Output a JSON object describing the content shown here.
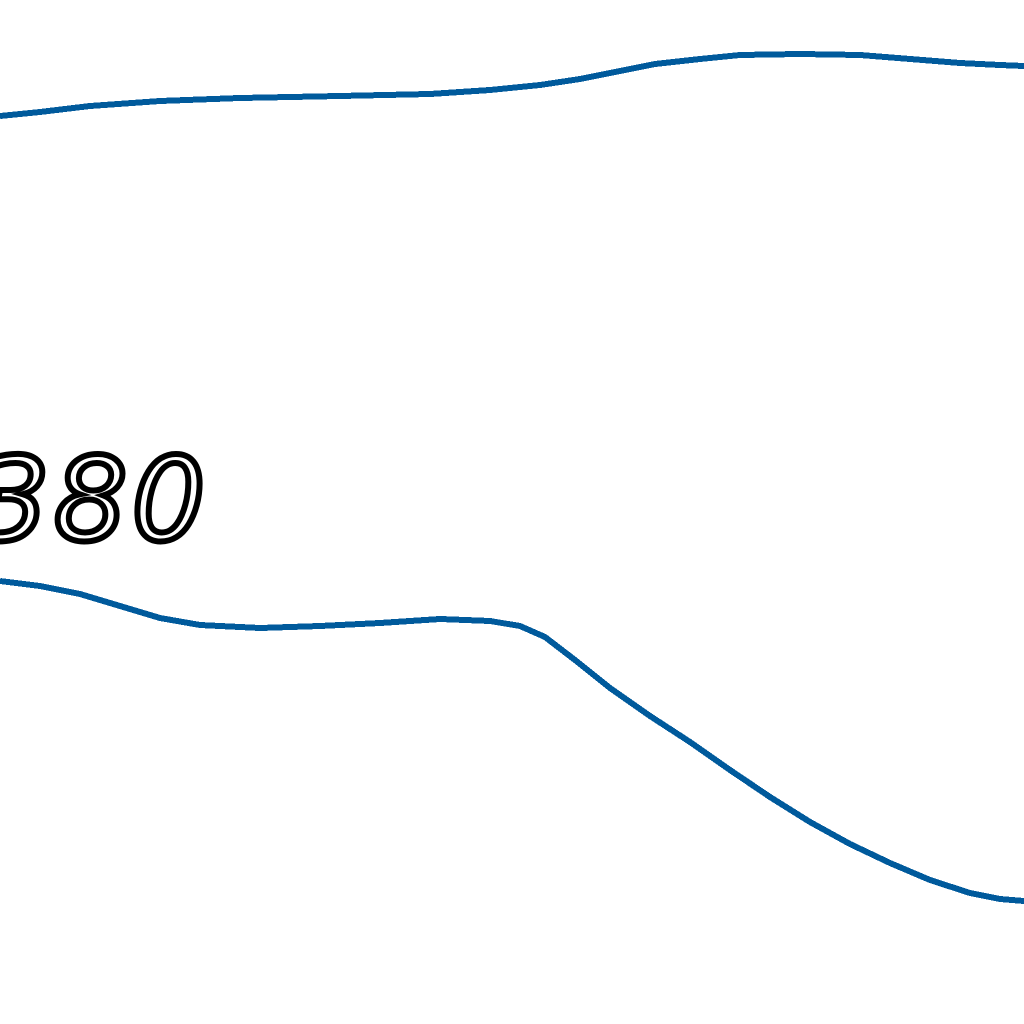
{
  "map": {
    "line_color": "#005a9c",
    "label_color": "#000000",
    "background_color": "#ffffff",
    "contour_label": "380"
  }
}
